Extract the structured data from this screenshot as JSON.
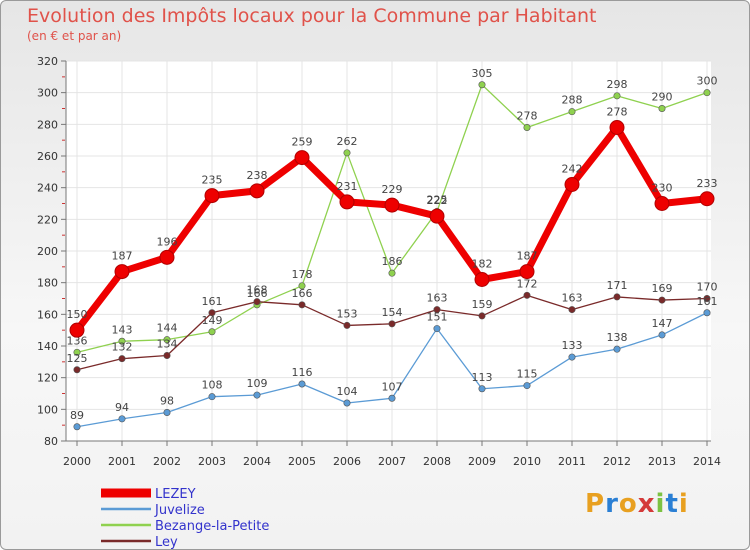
{
  "chart_data": {
    "type": "line",
    "title": "Evolution des Impôts locaux pour la Commune par Habitant",
    "subtitle": "(en € et par an)",
    "categories": [
      "2000",
      "2001",
      "2002",
      "2003",
      "2004",
      "2005",
      "2006",
      "2007",
      "2008",
      "2009",
      "2010",
      "2011",
      "2012",
      "2013",
      "2014"
    ],
    "ylim": [
      80,
      320
    ],
    "yticks": [
      80,
      100,
      120,
      140,
      160,
      180,
      200,
      220,
      240,
      260,
      280,
      300,
      320
    ],
    "series": [
      {
        "name": "LEZEY",
        "color": "#ee0000",
        "values": [
          150,
          187,
          196,
          235,
          238,
          259,
          231,
          229,
          222,
          182,
          187,
          242,
          278,
          230,
          233
        ]
      },
      {
        "name": "Juvelize",
        "color": "#5b9bd5",
        "values": [
          89,
          94,
          98,
          108,
          109,
          116,
          104,
          107,
          151,
          113,
          115,
          133,
          138,
          147,
          161
        ]
      },
      {
        "name": "Bezange-la-Petite",
        "color": "#8fd14f",
        "values": [
          136,
          143,
          144,
          149,
          166,
          178,
          262,
          186,
          225,
          305,
          278,
          288,
          298,
          290,
          300
        ]
      },
      {
        "name": "Ley",
        "color": "#7a2a2a",
        "values": [
          125,
          132,
          134,
          161,
          168,
          166,
          153,
          154,
          163,
          159,
          172,
          163,
          171,
          169,
          170
        ]
      }
    ]
  },
  "logo": {
    "text": "Proxiti"
  }
}
